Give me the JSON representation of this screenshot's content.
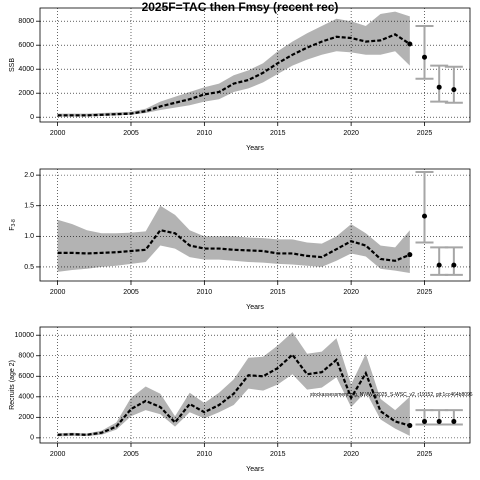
{
  "chart_data": [
    {
      "type": "line",
      "title": "2025F=TAC then Fmsy (recent rec)",
      "ylabel": "SSB",
      "xlabel": "Years",
      "x": [
        2000,
        2001,
        2002,
        2003,
        2004,
        2005,
        2006,
        2007,
        2008,
        2009,
        2010,
        2011,
        2012,
        2013,
        2014,
        2015,
        2016,
        2017,
        2018,
        2019,
        2020,
        2021,
        2022,
        2023,
        2024
      ],
      "values": [
        150,
        150,
        150,
        200,
        250,
        300,
        500,
        900,
        1200,
        1500,
        1900,
        2100,
        2800,
        3100,
        3700,
        4500,
        5200,
        5800,
        6300,
        6700,
        6600,
        6300,
        6400,
        6900,
        6100
      ],
      "lower": [
        50,
        60,
        70,
        100,
        150,
        200,
        350,
        600,
        800,
        1000,
        1300,
        1500,
        2100,
        2400,
        2900,
        3600,
        4300,
        4800,
        5200,
        5500,
        5400,
        5200,
        5200,
        5500,
        4300
      ],
      "upper": [
        300,
        300,
        300,
        350,
        400,
        450,
        700,
        1300,
        1700,
        2100,
        2500,
        2800,
        3500,
        3900,
        4500,
        5500,
        6300,
        7000,
        7600,
        8200,
        8000,
        7600,
        8600,
        8800,
        8400
      ],
      "forecast": {
        "x": [
          2025,
          2026,
          2027
        ],
        "values": [
          5000,
          2500,
          2300
        ],
        "lower": [
          3200,
          1300,
          1200
        ],
        "upper": [
          7600,
          4300,
          4200
        ]
      },
      "xlim": [
        1998.8,
        2028.1
      ],
      "xticks": [
        2000,
        2005,
        2010,
        2015,
        2020,
        2025
      ],
      "ylim": [
        -400,
        9100
      ],
      "yticks": [
        0,
        2000,
        4000,
        6000,
        8000
      ],
      "grid": true,
      "line_color": "#000000",
      "band_color": "#b3b3b3",
      "forecast_color": "#a6a6a6"
    },
    {
      "type": "line",
      "ylabel": "F",
      "ylabel_sub": "3-8",
      "xlabel": "Years",
      "x": [
        2000,
        2001,
        2002,
        2003,
        2004,
        2005,
        2006,
        2007,
        2008,
        2009,
        2010,
        2011,
        2012,
        2013,
        2014,
        2015,
        2016,
        2017,
        2018,
        2019,
        2020,
        2021,
        2022,
        2023,
        2024
      ],
      "values": [
        0.73,
        0.73,
        0.72,
        0.73,
        0.74,
        0.76,
        0.78,
        1.1,
        1.05,
        0.85,
        0.8,
        0.8,
        0.78,
        0.77,
        0.76,
        0.72,
        0.72,
        0.68,
        0.66,
        0.79,
        0.92,
        0.85,
        0.63,
        0.6,
        0.7
      ],
      "lower": [
        0.42,
        0.45,
        0.47,
        0.5,
        0.52,
        0.55,
        0.58,
        0.85,
        0.8,
        0.66,
        0.62,
        0.62,
        0.6,
        0.58,
        0.57,
        0.55,
        0.54,
        0.52,
        0.5,
        0.6,
        0.72,
        0.67,
        0.47,
        0.44,
        0.4
      ],
      "upper": [
        1.27,
        1.2,
        1.1,
        1.05,
        1.05,
        1.06,
        1.08,
        1.5,
        1.35,
        1.1,
        1.0,
        1.0,
        1.0,
        0.98,
        0.97,
        0.95,
        0.95,
        0.9,
        0.88,
        1.0,
        1.2,
        1.05,
        0.85,
        0.82,
        1.1
      ],
      "forecast": {
        "x": [
          2025,
          2026,
          2027
        ],
        "values": [
          1.33,
          0.53,
          0.53
        ],
        "lower": [
          0.9,
          0.37,
          0.37
        ],
        "upper": [
          2.05,
          0.82,
          0.82
        ]
      },
      "xlim": [
        1998.8,
        2028.1
      ],
      "xticks": [
        2000,
        2005,
        2010,
        2015,
        2020,
        2025
      ],
      "ylim": [
        0.27,
        2.1
      ],
      "yticks": [
        0.5,
        {
          "value": 1,
          "label": "1.0"
        },
        1.5,
        {
          "value": 2,
          "label": "2.0"
        }
      ],
      "grid": true,
      "line_color": "#000000",
      "band_color": "#b3b3b3",
      "forecast_color": "#a6a6a6"
    },
    {
      "type": "line",
      "ylabel": "Recruits (age 2)",
      "xlabel": "Years",
      "annotation": "stockassessment.org, NWWS2025_S-WSC_v2, r19152, git:1cc464b8096",
      "x": [
        2000,
        2001,
        2002,
        2003,
        2004,
        2005,
        2006,
        2007,
        2008,
        2009,
        2010,
        2011,
        2012,
        2013,
        2014,
        2015,
        2016,
        2017,
        2018,
        2019,
        2020,
        2021,
        2022,
        2023,
        2024
      ],
      "values": [
        300,
        350,
        300,
        500,
        1100,
        2800,
        3600,
        3000,
        1500,
        3300,
        2500,
        3200,
        4300,
        6100,
        6000,
        6800,
        8100,
        6200,
        6400,
        7600,
        3900,
        6300,
        2600,
        1600,
        1200
      ],
      "lower": [
        150,
        200,
        180,
        300,
        800,
        2100,
        2700,
        2300,
        1100,
        2500,
        1900,
        2500,
        3200,
        4800,
        4600,
        5200,
        6200,
        4700,
        4900,
        5900,
        3000,
        4500,
        1800,
        900,
        200
      ],
      "upper": [
        450,
        500,
        420,
        700,
        1500,
        3900,
        5000,
        4300,
        2100,
        4400,
        3400,
        4400,
        5700,
        7800,
        7900,
        9000,
        10300,
        8200,
        8400,
        9700,
        5200,
        8200,
        3800,
        2700,
        4000
      ],
      "forecast": {
        "x": [
          2025,
          2026,
          2027
        ],
        "values": [
          1600,
          1600,
          1600
        ],
        "lower": [
          1300,
          1300,
          1300
        ],
        "upper": [
          2700,
          2700,
          2700
        ]
      },
      "xlim": [
        1998.8,
        2028.1
      ],
      "xticks": [
        2000,
        2005,
        2010,
        2015,
        2020,
        2025
      ],
      "ylim": [
        -500,
        10800
      ],
      "yticks": [
        0,
        2000,
        4000,
        6000,
        8000,
        10000
      ],
      "grid": true,
      "line_color": "#000000",
      "band_color": "#b3b3b3",
      "forecast_color": "#a6a6a6"
    }
  ]
}
